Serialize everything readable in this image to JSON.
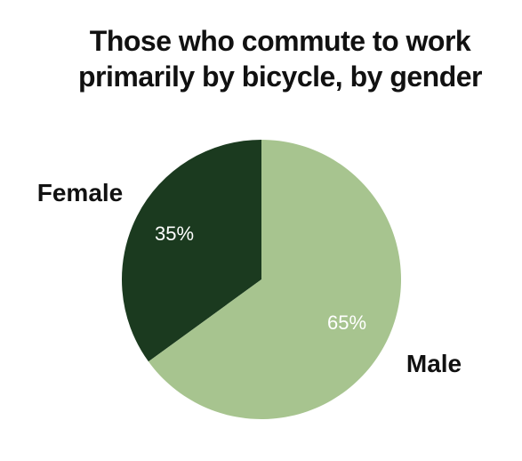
{
  "chart_data": {
    "type": "pie",
    "title": "Those who commute to work primarily by bicycle, by gender",
    "title_lines": [
      "Those who commute to work",
      "primarily by bicycle, by gender"
    ],
    "slices": [
      {
        "label": "Female",
        "value": 35,
        "value_label": "35%",
        "color": "#1b3a1f"
      },
      {
        "label": "Male",
        "value": 65,
        "value_label": "65%",
        "color": "#a7c48f"
      }
    ],
    "legend": "none"
  }
}
